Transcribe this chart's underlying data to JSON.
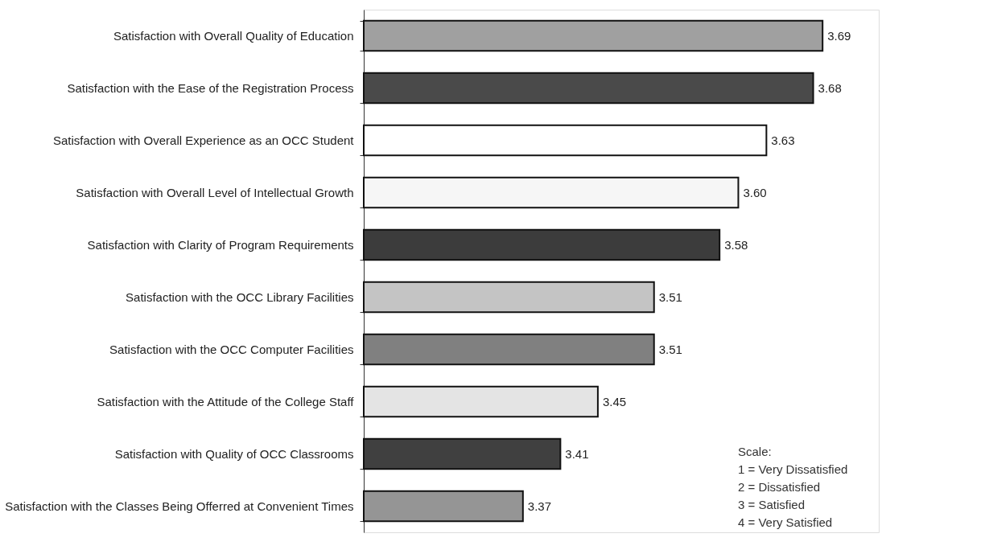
{
  "chart_data": {
    "type": "bar",
    "orientation": "horizontal",
    "categories": [
      "Satisfaction with Overall Quality of Education",
      "Satisfaction with the Ease of the Registration Process",
      "Satisfaction with Overall Experience as an OCC Student",
      "Satisfaction with Overall Level of Intellectual Growth",
      "Satisfaction with Clarity of Program Requirements",
      "Satisfaction with the OCC Library Facilities",
      "Satisfaction with the OCC Computer Facilities",
      "Satisfaction with the Attitude of the College Staff",
      "Satisfaction with Quality of OCC Classrooms",
      "Satisfaction with the Classes Being Offerred at Convenient Times"
    ],
    "values": [
      3.69,
      3.68,
      3.63,
      3.6,
      3.58,
      3.51,
      3.51,
      3.45,
      3.41,
      3.37
    ],
    "value_labels": [
      "3.69",
      "3.68",
      "3.63",
      "3.60",
      "3.58",
      "3.51",
      "3.51",
      "3.45",
      "3.41",
      "3.37"
    ],
    "colors": [
      "#a0a0a0",
      "#4a4a4a",
      "#ffffff",
      "#f6f6f6",
      "#3c3c3c",
      "#c4c4c4",
      "#808080",
      "#e4e4e4",
      "#404040",
      "#959595"
    ],
    "xlim": [
      3.2,
      3.75
    ],
    "tick_labels": "y",
    "annotations": [
      "Scale:",
      "1 = Very Dissatisfied",
      "2 = Dissatisfied",
      "3 = Satisfied",
      "4 = Very Satisfied"
    ]
  }
}
